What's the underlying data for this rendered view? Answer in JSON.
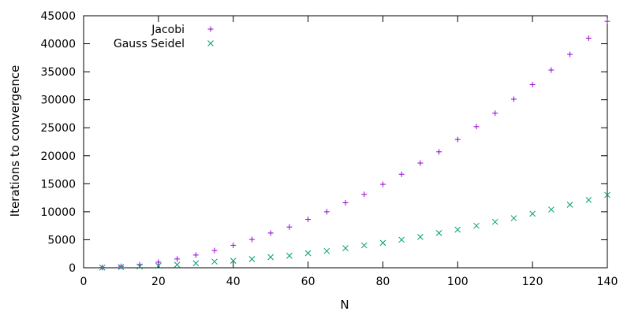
{
  "chart_data": {
    "type": "scatter",
    "title": "",
    "xlabel": "N",
    "ylabel": "Iterations to convergence",
    "xlim": [
      0,
      140
    ],
    "ylim": [
      0,
      45000
    ],
    "xticks": [
      0,
      20,
      40,
      60,
      80,
      100,
      120,
      140
    ],
    "yticks": [
      0,
      5000,
      10000,
      15000,
      20000,
      25000,
      30000,
      35000,
      40000,
      45000
    ],
    "grid": false,
    "legend_position": "top-left",
    "x": [
      5,
      10,
      15,
      20,
      25,
      30,
      35,
      40,
      45,
      50,
      55,
      60,
      65,
      70,
      75,
      80,
      85,
      90,
      95,
      100,
      105,
      110,
      115,
      120,
      125,
      130,
      135,
      140
    ],
    "series": [
      {
        "name": "Jacobi",
        "marker": "plus",
        "color": "#9400d3",
        "values": [
          50,
          250,
          560,
          1000,
          1570,
          2270,
          3080,
          4020,
          5060,
          6200,
          7280,
          8640,
          10000,
          11600,
          13100,
          14900,
          16700,
          18700,
          20700,
          22900,
          25200,
          27600,
          30100,
          32700,
          35300,
          38100,
          41000,
          44000
        ]
      },
      {
        "name": "Gauss Seidel",
        "marker": "cross",
        "color": "#009e73",
        "values": [
          20,
          120,
          230,
          350,
          550,
          810,
          1100,
          1250,
          1550,
          1900,
          2150,
          2600,
          3000,
          3500,
          4000,
          4450,
          5000,
          5500,
          6200,
          6800,
          7500,
          8200,
          8850,
          9650,
          10400,
          11250,
          12100,
          13000
        ]
      }
    ]
  }
}
